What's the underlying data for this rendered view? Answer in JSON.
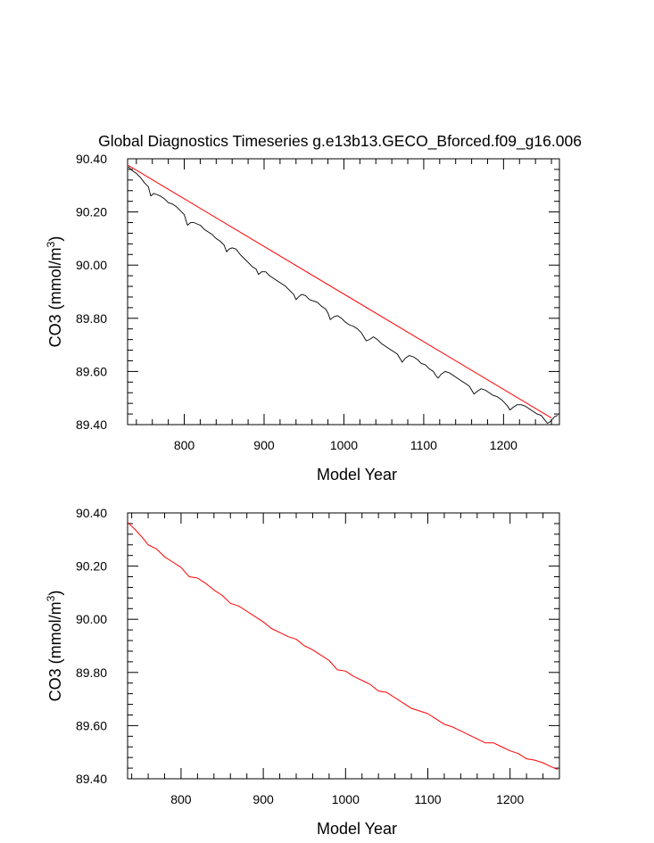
{
  "title": "Global Diagnostics Timeseries g.e13b13.GECO_Bforced.f09_g16.006",
  "colors": {
    "raw": "#000000",
    "smooth": "#ff0000",
    "frame": "#000000"
  },
  "chart_data": [
    {
      "type": "line",
      "title": "Global Diagnostics Timeseries g.e13b13.GECO_Bforced.f09_g16.006",
      "xlabel": "Model Year",
      "ylabel": "CO3 (mmol/m^3)",
      "ylabel_text": "CO3 (mmol/m",
      "ylabel_sup": "3",
      "ylabel_close": ")",
      "xlim": [
        729,
        1270
      ],
      "ylim": [
        89.4,
        90.4
      ],
      "xticks": [
        800,
        900,
        1000,
        1100,
        1200
      ],
      "xtick_labels": [
        "800",
        "900",
        "1000",
        "1100",
        "1200"
      ],
      "yticks": [
        89.4,
        89.6,
        89.8,
        90.0,
        90.2,
        90.4
      ],
      "ytick_labels": [
        "89.40",
        "89.60",
        "89.80",
        "90.00",
        "90.20",
        "90.40"
      ],
      "grid": false,
      "series": [
        {
          "style": "raw",
          "color": "#000000",
          "x": [
            730,
            735,
            740,
            745,
            750,
            755,
            758,
            762,
            766,
            770,
            775,
            780,
            785,
            790,
            795,
            800,
            804,
            808,
            812,
            816,
            820,
            825,
            830,
            835,
            840,
            845,
            850,
            853,
            856,
            860,
            865,
            870,
            875,
            880,
            885,
            890,
            893,
            897,
            902,
            907,
            912,
            917,
            922,
            927,
            932,
            937,
            940,
            943,
            947,
            952,
            957,
            962,
            967,
            972,
            977,
            980,
            983,
            987,
            992,
            997,
            1002,
            1007,
            1012,
            1017,
            1022,
            1025,
            1028,
            1032,
            1037,
            1042,
            1047,
            1052,
            1057,
            1062,
            1067,
            1070,
            1073,
            1077,
            1082,
            1087,
            1092,
            1097,
            1102,
            1107,
            1112,
            1115,
            1118,
            1122,
            1127,
            1132,
            1137,
            1142,
            1147,
            1152,
            1157,
            1160,
            1163,
            1167,
            1172,
            1177,
            1182,
            1187,
            1192,
            1197,
            1202,
            1205,
            1208,
            1212,
            1217,
            1222,
            1227,
            1232,
            1237,
            1242,
            1247,
            1251,
            1255,
            1258,
            1261,
            1264,
            1268
          ],
          "y": [
            90.37,
            90.355,
            90.345,
            90.33,
            90.31,
            90.295,
            90.26,
            90.27,
            90.265,
            90.26,
            90.25,
            90.235,
            90.23,
            90.22,
            90.205,
            90.19,
            90.15,
            90.16,
            90.16,
            90.155,
            90.15,
            90.135,
            90.125,
            90.115,
            90.1,
            90.09,
            90.075,
            90.05,
            90.06,
            90.065,
            90.06,
            90.04,
            90.025,
            90.01,
            89.995,
            89.985,
            89.965,
            89.975,
            89.975,
            89.96,
            89.95,
            89.94,
            89.93,
            89.92,
            89.905,
            89.89,
            89.87,
            89.88,
            89.89,
            89.885,
            89.87,
            89.865,
            89.86,
            89.845,
            89.835,
            89.82,
            89.795,
            89.805,
            89.81,
            89.8,
            89.785,
            89.775,
            89.77,
            89.76,
            89.745,
            89.73,
            89.715,
            89.72,
            89.73,
            89.72,
            89.705,
            89.695,
            89.685,
            89.675,
            89.665,
            89.65,
            89.635,
            89.65,
            89.66,
            89.655,
            89.645,
            89.63,
            89.625,
            89.61,
            89.6,
            89.585,
            89.575,
            89.59,
            89.6,
            89.595,
            89.585,
            89.575,
            89.565,
            89.555,
            89.545,
            89.53,
            89.515,
            89.525,
            89.535,
            89.53,
            89.52,
            89.51,
            89.505,
            89.495,
            89.48,
            89.47,
            89.455,
            89.465,
            89.475,
            89.475,
            89.47,
            89.46,
            89.45,
            89.44,
            89.435,
            89.42,
            89.405,
            89.41,
            89.42,
            89.43,
            89.435
          ]
        },
        {
          "style": "smooth",
          "color": "#ff0000",
          "x": [
            730,
            1260
          ],
          "y": [
            90.375,
            89.425
          ]
        }
      ]
    },
    {
      "type": "line",
      "xlabel": "Model Year",
      "ylabel": "CO3 (mmol/m^3)",
      "ylabel_text": "CO3 (mmol/m",
      "ylabel_sup": "3",
      "ylabel_close": ")",
      "xlim": [
        735,
        1260
      ],
      "ylim": [
        89.4,
        90.4
      ],
      "xticks": [
        800,
        900,
        1000,
        1100,
        1200
      ],
      "xtick_labels": [
        "800",
        "900",
        "1000",
        "1100",
        "1200"
      ],
      "yticks": [
        89.4,
        89.6,
        89.8,
        90.0,
        90.2,
        90.4
      ],
      "ytick_labels": [
        "89.40",
        "89.60",
        "89.80",
        "90.00",
        "90.20",
        "90.40"
      ],
      "grid": false,
      "series": [
        {
          "style": "smooth",
          "color": "#ff0000",
          "x": [
            735,
            745,
            755,
            760,
            770,
            780,
            790,
            800,
            810,
            820,
            830,
            840,
            850,
            860,
            870,
            880,
            890,
            900,
            910,
            920,
            930,
            940,
            950,
            960,
            970,
            980,
            990,
            1000,
            1010,
            1020,
            1030,
            1040,
            1050,
            1060,
            1070,
            1080,
            1090,
            1100,
            1110,
            1120,
            1130,
            1140,
            1150,
            1160,
            1170,
            1180,
            1190,
            1200,
            1210,
            1220,
            1230,
            1240,
            1250,
            1258
          ],
          "y": [
            90.365,
            90.335,
            90.3,
            90.28,
            90.265,
            90.235,
            90.215,
            90.195,
            90.16,
            90.155,
            90.135,
            90.11,
            90.09,
            90.06,
            90.05,
            90.03,
            90.01,
            89.99,
            89.965,
            89.95,
            89.935,
            89.925,
            89.9,
            89.885,
            89.865,
            89.845,
            89.81,
            89.805,
            89.785,
            89.77,
            89.755,
            89.73,
            89.725,
            89.705,
            89.685,
            89.665,
            89.655,
            89.645,
            89.625,
            89.605,
            89.595,
            89.58,
            89.565,
            89.55,
            89.535,
            89.535,
            89.52,
            89.505,
            89.495,
            89.475,
            89.47,
            89.46,
            89.445,
            89.435
          ]
        }
      ]
    }
  ]
}
